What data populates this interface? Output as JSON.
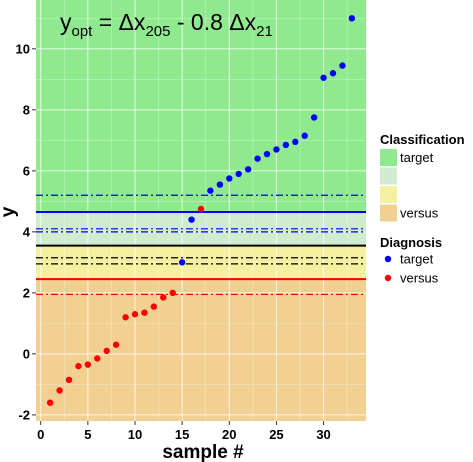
{
  "chart_data": {
    "type": "scatter",
    "title_parts": {
      "y": "y",
      "opt": "opt",
      "eq": " = Δx",
      "s1": "205",
      "mid": " - 0.8 Δx",
      "s2": "21"
    },
    "xlabel": "sample #",
    "ylabel": "y",
    "xlim": [
      -0.5,
      34.5
    ],
    "ylim": [
      -2.2,
      11.6
    ],
    "xticks": [
      0,
      5,
      10,
      15,
      20,
      25,
      30
    ],
    "yticks": [
      -2,
      0,
      2,
      4,
      6,
      8,
      10
    ],
    "grid": true,
    "regions": [
      {
        "name": "target",
        "from": 4.65,
        "to": 11.6,
        "color": "#8fea8f"
      },
      {
        "name": "target-uncertain",
        "from": 3.55,
        "to": 4.65,
        "color": "#cfeccf"
      },
      {
        "name": "versus-uncertain",
        "from": 2.45,
        "to": 3.55,
        "color": "#f5f0a0"
      },
      {
        "name": "versus",
        "from": -2.2,
        "to": 2.45,
        "color": "#f2d092"
      }
    ],
    "hlines": [
      {
        "y": 5.2,
        "color": "#0000ff",
        "style": "dashdot"
      },
      {
        "y": 4.65,
        "color": "#0000ff",
        "style": "solid"
      },
      {
        "y": 4.1,
        "color": "#0000ff",
        "style": "dashdot"
      },
      {
        "y": 4.0,
        "color": "#0000ff",
        "style": "dashdot"
      },
      {
        "y": 3.55,
        "color": "#000000",
        "style": "solid"
      },
      {
        "y": 3.15,
        "color": "#000000",
        "style": "dashdot"
      },
      {
        "y": 2.95,
        "color": "#000000",
        "style": "dashdot"
      },
      {
        "y": 2.45,
        "color": "#ff0000",
        "style": "solid"
      },
      {
        "y": 1.95,
        "color": "#ff0000",
        "style": "dashdot"
      }
    ],
    "series": [
      {
        "name": "target",
        "color": "#0000ff",
        "x": [
          15,
          16,
          18,
          19,
          20,
          21,
          22,
          23,
          24,
          25,
          26,
          27,
          28,
          29,
          30,
          31,
          32,
          33
        ],
        "y": [
          3.0,
          4.4,
          5.35,
          5.55,
          5.75,
          5.9,
          6.05,
          6.4,
          6.55,
          6.7,
          6.85,
          6.95,
          7.15,
          7.75,
          9.05,
          9.2,
          9.45,
          11.0
        ]
      },
      {
        "name": "versus",
        "color": "#ff0000",
        "x": [
          1,
          2,
          3,
          4,
          5,
          6,
          7,
          8,
          9,
          10,
          11,
          12,
          13,
          14,
          17
        ],
        "y": [
          -1.6,
          -1.2,
          -0.85,
          -0.4,
          -0.35,
          -0.15,
          0.1,
          0.3,
          1.2,
          1.3,
          1.35,
          1.55,
          1.85,
          2.0,
          4.75
        ]
      }
    ]
  },
  "legend": {
    "classification_title": "Classification",
    "classification_items": [
      {
        "label": "target",
        "color": "#8fea8f"
      },
      {
        "label": "",
        "color": "#cfeccf"
      },
      {
        "label": "",
        "color": "#f5f0a0"
      },
      {
        "label": "versus",
        "color": "#f2d092"
      }
    ],
    "diagnosis_title": "Diagnosis",
    "diagnosis_items": [
      {
        "label": "target",
        "color": "#0000ff"
      },
      {
        "label": "versus",
        "color": "#ff0000"
      }
    ]
  }
}
